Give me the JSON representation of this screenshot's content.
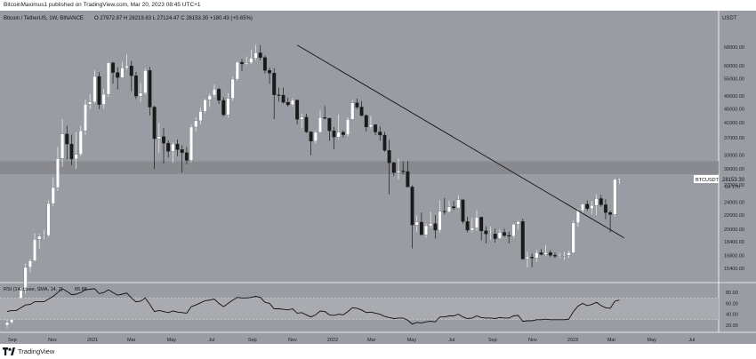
{
  "header": {
    "publisher": "BitcoinMaximus1 published on TradingView.com, Mar 20, 2023 08:45 UTC+1"
  },
  "symbol_info": {
    "title": "Bitcoin / TetherUS, 1W, BINANCE",
    "ohlc": "O 27972.87 H 28219.83 L 27124.47 C 28153.30 +180.43 (+0.65%)"
  },
  "rsi_label": "RSI (14, close, SMA, 14, 2)",
  "rsi_value": "65.88",
  "price_axis": {
    "currency": "USDT",
    "labels": [
      "76000.00",
      "68000.00",
      "60000.00",
      "55000.00",
      "49000.00",
      "45000.00",
      "41000.00",
      "37000.00",
      "33000.00",
      "30000.00",
      "27000.00",
      "24000.00",
      "22000.00",
      "20000.00",
      "18400.00",
      "16800.00",
      "15400.00"
    ]
  },
  "rsi_axis": {
    "labels": [
      "80.00",
      "60.00",
      "40.00",
      "20.00"
    ]
  },
  "price_tag": {
    "symbol": "BTCUSDT",
    "price": "28153.30",
    "countdown": "6d 17h"
  },
  "time_axis": {
    "labels": [
      "Sep",
      "Nov",
      "2021",
      "Mar",
      "May",
      "Jul",
      "Sep",
      "Nov",
      "2022",
      "Mar",
      "May",
      "Jul",
      "Sep",
      "Nov",
      "2023",
      "Mar",
      "May",
      "Jul"
    ]
  },
  "footer": {
    "brand": "TradingView"
  },
  "colors": {
    "background": "#9a9ca3",
    "up": "#ffffff",
    "down": "#1a1a1a",
    "band": "#8a8c92",
    "rsi_line": "#111111"
  },
  "chart_data": {
    "type": "candlestick",
    "series": [
      {
        "name": "BTCUSDT",
        "ohlc": [
          [
            10500,
            11000,
            10300,
            10700
          ],
          [
            10700,
            11800,
            10600,
            11600
          ],
          [
            11600,
            12200,
            11300,
            11800
          ],
          [
            11800,
            13500,
            11600,
            13300
          ],
          [
            13300,
            15900,
            13000,
            15500
          ],
          [
            15500,
            16400,
            15000,
            16200
          ],
          [
            16200,
            19500,
            16100,
            18700
          ],
          [
            18700,
            19400,
            17600,
            19100
          ],
          [
            19100,
            19900,
            18700,
            19200
          ],
          [
            19200,
            24300,
            19000,
            23800
          ],
          [
            23800,
            28400,
            23400,
            26500
          ],
          [
            26500,
            34800,
            25900,
            32200
          ],
          [
            32200,
            41900,
            30500,
            38000
          ],
          [
            38000,
            40100,
            32000,
            35500
          ],
          [
            35500,
            37800,
            30800,
            32100
          ],
          [
            32100,
            38500,
            30000,
            33100
          ],
          [
            33100,
            40200,
            32700,
            38800
          ],
          [
            38800,
            47800,
            37700,
            46400
          ],
          [
            46400,
            49700,
            44800,
            47100
          ],
          [
            47100,
            58300,
            46700,
            55900
          ],
          [
            55900,
            57500,
            44900,
            46300
          ],
          [
            46300,
            51500,
            45000,
            49600
          ],
          [
            49600,
            61800,
            48700,
            61200
          ],
          [
            61200,
            61700,
            53300,
            57400
          ],
          [
            57400,
            59500,
            51200,
            55500
          ],
          [
            55500,
            61700,
            55200,
            59200
          ],
          [
            59200,
            64800,
            58500,
            60000
          ],
          [
            60000,
            62000,
            50600,
            56200
          ],
          [
            56200,
            57600,
            48000,
            49000
          ],
          [
            49000,
            53600,
            47000,
            50000
          ],
          [
            50000,
            59000,
            49500,
            58200
          ],
          [
            58200,
            59600,
            43000,
            45500
          ],
          [
            45500,
            45900,
            30000,
            36800
          ],
          [
            36800,
            40800,
            33500,
            37300
          ],
          [
            37300,
            39500,
            31100,
            35700
          ],
          [
            35700,
            36400,
            32400,
            33800
          ],
          [
            33800,
            35900,
            31300,
            35500
          ],
          [
            35500,
            36600,
            32700,
            34200
          ],
          [
            34200,
            35200,
            29300,
            33500
          ],
          [
            33500,
            34800,
            31000,
            31800
          ],
          [
            31800,
            40500,
            31400,
            39800
          ],
          [
            39800,
            42500,
            38700,
            41500
          ],
          [
            41500,
            45300,
            40500,
            44200
          ],
          [
            44200,
            48100,
            43700,
            47800
          ],
          [
            47800,
            49800,
            45500,
            49200
          ],
          [
            49200,
            52900,
            48600,
            51300
          ],
          [
            51300,
            51800,
            46500,
            47600
          ],
          [
            47600,
            48600,
            42800,
            43200
          ],
          [
            43200,
            50000,
            42400,
            48200
          ],
          [
            48200,
            55800,
            47500,
            54900
          ],
          [
            54900,
            62000,
            54200,
            61500
          ],
          [
            61500,
            62800,
            58000,
            60800
          ],
          [
            60800,
            64000,
            60300,
            61300
          ],
          [
            61300,
            67000,
            60900,
            63200
          ],
          [
            63200,
            69000,
            62300,
            65500
          ],
          [
            65500,
            69000,
            62300,
            63500
          ],
          [
            63500,
            64300,
            57000,
            58200
          ],
          [
            58200,
            59400,
            53200,
            57200
          ],
          [
            57200,
            59100,
            42000,
            49400
          ],
          [
            49400,
            51900,
            47200,
            49300
          ],
          [
            49300,
            51900,
            46600,
            47000
          ],
          [
            47000,
            48500,
            45600,
            46200
          ],
          [
            46200,
            48300,
            45700,
            47700
          ],
          [
            47700,
            47800,
            40500,
            41900
          ],
          [
            41900,
            43500,
            39600,
            42500
          ],
          [
            42500,
            43500,
            38200,
            38500
          ],
          [
            38500,
            38700,
            32900,
            36200
          ],
          [
            36200,
            38800,
            35700,
            38400
          ],
          [
            38400,
            44400,
            38300,
            42400
          ],
          [
            42400,
            45800,
            41900,
            42200
          ],
          [
            42200,
            42400,
            36300,
            38800
          ],
          [
            38800,
            39800,
            34300,
            37200
          ],
          [
            37200,
            43300,
            36700,
            38400
          ],
          [
            38400,
            38900,
            37100,
            37800
          ],
          [
            37800,
            42500,
            37300,
            41900
          ],
          [
            41900,
            47700,
            41700,
            46800
          ],
          [
            46800,
            48200,
            44900,
            45500
          ],
          [
            45500,
            47400,
            42700,
            43000
          ],
          [
            43000,
            43300,
            38600,
            39800
          ],
          [
            39800,
            42900,
            39400,
            40400
          ],
          [
            40400,
            40600,
            37700,
            38500
          ],
          [
            38500,
            39900,
            36300,
            37700
          ],
          [
            37700,
            38500,
            33700,
            34000
          ],
          [
            34000,
            36500,
            25300,
            31300
          ],
          [
            31300,
            31500,
            28600,
            29300
          ],
          [
            29300,
            32200,
            28000,
            29600
          ],
          [
            29600,
            31600,
            28900,
            29500
          ],
          [
            29500,
            31700,
            26600,
            26600
          ],
          [
            26600,
            26900,
            17600,
            20600
          ],
          [
            20600,
            21900,
            19700,
            21000
          ],
          [
            21000,
            22400,
            19300,
            19300
          ],
          [
            19300,
            20800,
            18900,
            20500
          ],
          [
            20500,
            22500,
            20200,
            20800
          ],
          [
            20800,
            22000,
            18800,
            19900
          ],
          [
            19900,
            24300,
            19600,
            22600
          ],
          [
            22600,
            24700,
            22100,
            22500
          ],
          [
            22500,
            24300,
            22400,
            23300
          ],
          [
            23300,
            24200,
            22800,
            23100
          ],
          [
            23100,
            25200,
            23000,
            24400
          ],
          [
            24400,
            24400,
            20800,
            21100
          ],
          [
            21100,
            21800,
            19600,
            19900
          ],
          [
            19900,
            21600,
            19600,
            20200
          ],
          [
            20200,
            22700,
            19800,
            21700
          ],
          [
            21700,
            21800,
            18600,
            19800
          ],
          [
            19800,
            20400,
            18200,
            19400
          ],
          [
            19400,
            20400,
            18700,
            19400
          ],
          [
            19400,
            20100,
            18300,
            18800
          ],
          [
            18800,
            20000,
            18800,
            19600
          ],
          [
            19600,
            20100,
            19000,
            19200
          ],
          [
            19200,
            19700,
            18200,
            19100
          ],
          [
            19100,
            20800,
            18900,
            20700
          ],
          [
            20700,
            21100,
            20000,
            21100
          ],
          [
            21100,
            21500,
            16300,
            16400
          ],
          [
            16400,
            17200,
            15500,
            16600
          ],
          [
            16600,
            17000,
            15500,
            16500
          ],
          [
            16500,
            17400,
            16100,
            17100
          ],
          [
            17100,
            17500,
            16800,
            16900
          ],
          [
            16900,
            18000,
            16700,
            17100
          ],
          [
            17100,
            17400,
            16600,
            16800
          ],
          [
            16800,
            17100,
            16500,
            16700
          ],
          [
            16700,
            17100,
            16500,
            16800
          ],
          [
            16800,
            17200,
            16300,
            16800
          ],
          [
            16800,
            17300,
            16500,
            17100
          ],
          [
            17100,
            21300,
            17000,
            20900
          ],
          [
            20900,
            23000,
            20400,
            22700
          ],
          [
            22700,
            23900,
            22300,
            23700
          ],
          [
            23700,
            24300,
            22700,
            23000
          ],
          [
            23000,
            24200,
            22200,
            23500
          ],
          [
            23500,
            25300,
            22000,
            24600
          ],
          [
            24600,
            25200,
            23300,
            23600
          ],
          [
            23600,
            24500,
            21400,
            22400
          ],
          [
            22400,
            22700,
            19600,
            22100
          ],
          [
            22100,
            28200,
            21800,
            27972
          ],
          [
            27972,
            28220,
            27124,
            28153
          ]
        ],
        "x_start": "2020-08-24",
        "x_step": "1W"
      }
    ],
    "trendline": {
      "from": {
        "date": "2021-11-08",
        "price": 69000
      },
      "to": {
        "date": "2023-03-20",
        "price": 18900
      }
    },
    "support_band": {
      "low": 29000,
      "high": 31600
    },
    "rsi": [
      45,
      47,
      47,
      52,
      57,
      58,
      63,
      63,
      63,
      68,
      73,
      80,
      87,
      82,
      76,
      77,
      80,
      85,
      86,
      87,
      78,
      80,
      85,
      80,
      75,
      77,
      79,
      70,
      63,
      64,
      70,
      58,
      45,
      47,
      45,
      43,
      46,
      44,
      43,
      42,
      54,
      57,
      61,
      65,
      66,
      68,
      60,
      54,
      60,
      66,
      71,
      70,
      70,
      71,
      73,
      71,
      62,
      60,
      50,
      50,
      49,
      48,
      50,
      42,
      43,
      39,
      35,
      39,
      46,
      45,
      39,
      38,
      40,
      39,
      45,
      52,
      51,
      48,
      43,
      44,
      42,
      40,
      36,
      34,
      32,
      33,
      33,
      29,
      22,
      25,
      24,
      26,
      27,
      26,
      35,
      35,
      37,
      37,
      40,
      35,
      32,
      33,
      37,
      34,
      33,
      33,
      32,
      34,
      33,
      33,
      37,
      38,
      27,
      28,
      28,
      30,
      30,
      31,
      30,
      30,
      30,
      30,
      31,
      45,
      55,
      60,
      56,
      58,
      62,
      56,
      52,
      51,
      64,
      66
    ],
    "price_ylim": [
      14500,
      80000
    ],
    "rsi_ylim": [
      10,
      95
    ],
    "x_range": [
      "2020-08-24",
      "2023-07-31"
    ]
  }
}
